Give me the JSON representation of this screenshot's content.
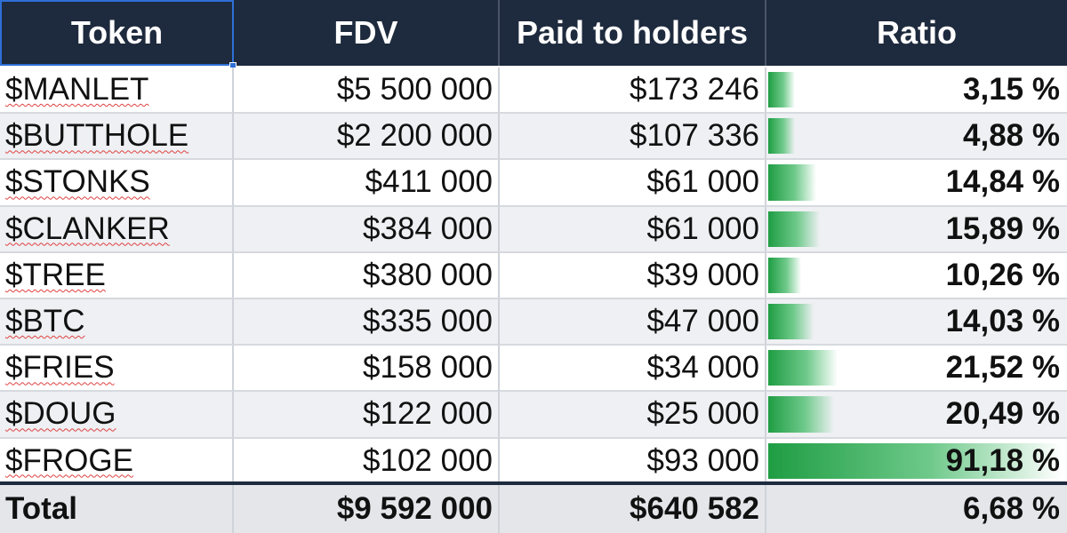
{
  "table": {
    "headers": [
      "Token",
      "FDV",
      "Paid to holders",
      "Ratio"
    ],
    "rows": [
      {
        "token": "$MANLET",
        "fdv": "$5 500 000",
        "paid": "$173 246",
        "ratio": "3,15 %",
        "ratio_value": 3.15
      },
      {
        "token": "$BUTTHOLE",
        "fdv": "$2 200 000",
        "paid": "$107 336",
        "ratio": "4,88 %",
        "ratio_value": 4.88
      },
      {
        "token": "$STONKS",
        "fdv": "$411 000",
        "paid": "$61 000",
        "ratio": "14,84 %",
        "ratio_value": 14.84
      },
      {
        "token": "$CLANKER",
        "fdv": "$384 000",
        "paid": "$61 000",
        "ratio": "15,89 %",
        "ratio_value": 15.89
      },
      {
        "token": "$TREE",
        "fdv": "$380 000",
        "paid": "$39 000",
        "ratio": "10,26 %",
        "ratio_value": 10.26
      },
      {
        "token": "$BTC",
        "fdv": "$335 000",
        "paid": "$47 000",
        "ratio": "14,03 %",
        "ratio_value": 14.03
      },
      {
        "token": "$FRIES",
        "fdv": "$158 000",
        "paid": "$34 000",
        "ratio": "21,52 %",
        "ratio_value": 21.52
      },
      {
        "token": "$DOUG",
        "fdv": "$122 000",
        "paid": "$25 000",
        "ratio": "20,49 %",
        "ratio_value": 20.49
      },
      {
        "token": "$FROGE",
        "fdv": "$102 000",
        "paid": "$93 000",
        "ratio": "91,18 %",
        "ratio_value": 91.18
      }
    ],
    "total": {
      "label": "Total",
      "fdv": "$9 592 000",
      "paid": "$640 582",
      "ratio": "6,68 %"
    }
  },
  "colors": {
    "header_bg": "#1e2a3d",
    "header_text": "#ffffff",
    "bar_green": "#1f9d43",
    "alt_row": "#eef0f3",
    "total_row": "#e4e6ea",
    "selection": "#2f6fd6"
  }
}
